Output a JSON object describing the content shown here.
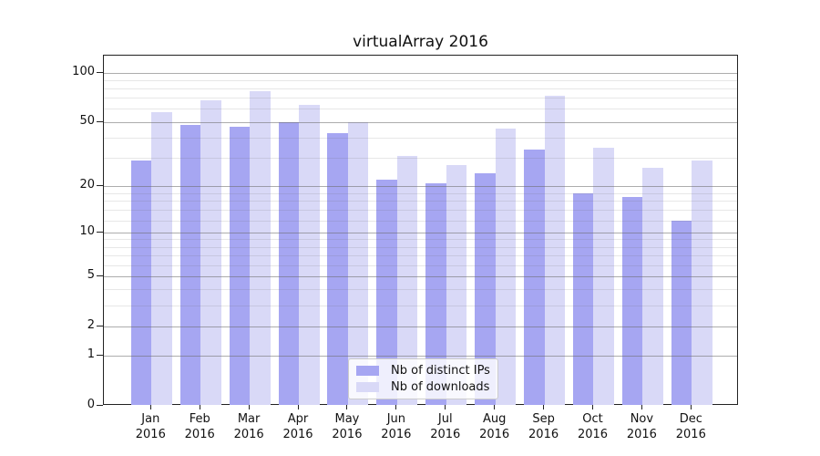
{
  "chart_data": {
    "type": "bar",
    "title": "virtualArray 2016",
    "categories": [
      "Jan 2016",
      "Feb 2016",
      "Mar 2016",
      "Apr 2016",
      "May 2016",
      "Jun 2016",
      "Jul 2016",
      "Aug 2016",
      "Sep 2016",
      "Oct 2016",
      "Nov 2016",
      "Dec 2016"
    ],
    "x_tick_months": [
      "Jan",
      "Feb",
      "Mar",
      "Apr",
      "May",
      "Jun",
      "Jul",
      "Aug",
      "Sep",
      "Oct",
      "Nov",
      "Dec"
    ],
    "x_tick_year": "2016",
    "series": [
      {
        "name": "Nb of distinct IPs",
        "color": "#a6a6f2",
        "values": [
          29,
          48,
          47,
          50,
          43,
          22,
          21,
          24,
          34,
          18,
          17,
          12
        ]
      },
      {
        "name": "Nb of downloads",
        "color": "#d9d9f7",
        "values": [
          58,
          68,
          77,
          64,
          50,
          31,
          27,
          46,
          73,
          35,
          26,
          29
        ]
      }
    ],
    "y_axis": {
      "scale": "log(value+1)",
      "ticks": [
        0,
        1,
        2,
        5,
        10,
        20,
        50,
        100
      ],
      "minor_ticks": [
        3,
        4,
        6,
        7,
        8,
        9,
        12,
        14,
        16,
        18,
        30,
        40,
        60,
        70,
        80,
        90
      ],
      "range": [
        0,
        100
      ],
      "label": ""
    },
    "grid": true,
    "legend": {
      "position": "lower-center",
      "entries": [
        "Nb of distinct IPs",
        "Nb of downloads"
      ]
    },
    "colors": {
      "background": "#ffffff",
      "major_grid": "#b0b0b0",
      "minor_grid": "#e8e8e8",
      "axis": "#222222"
    }
  }
}
